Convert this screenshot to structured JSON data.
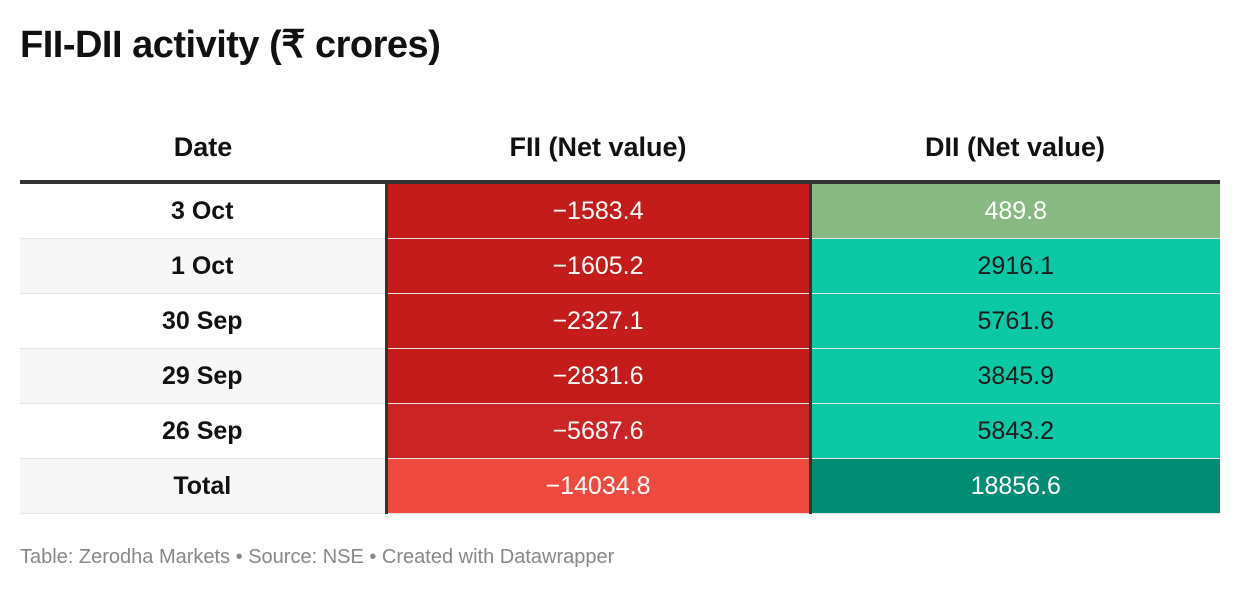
{
  "title": "FII-DII activity (₹ crores)",
  "footer": "Table: Zerodha Markets • Source: NSE • Created with Datawrapper",
  "chart_data": {
    "type": "table",
    "columns": [
      "Date",
      "FII (Net value)",
      "DII (Net value)"
    ],
    "rows": [
      {
        "date": "3 Oct",
        "fii": "−1583.4",
        "dii": "489.8",
        "fii_value": -1583.4,
        "dii_value": 489.8,
        "fii_color": "#c41b1b",
        "dii_color": "#89b982",
        "fii_text": "#ffffff",
        "dii_text": "#ffffff"
      },
      {
        "date": "1 Oct",
        "fii": "−1605.2",
        "dii": "2916.1",
        "fii_value": -1605.2,
        "dii_value": 2916.1,
        "fii_color": "#c41b1b",
        "dii_color": "#0ac9a4",
        "fii_text": "#ffffff",
        "dii_text": "#1a1a1a"
      },
      {
        "date": "30 Sep",
        "fii": "−2327.1",
        "dii": "5761.6",
        "fii_value": -2327.1,
        "dii_value": 5761.6,
        "fii_color": "#c41b1b",
        "dii_color": "#0ac9a4",
        "fii_text": "#ffffff",
        "dii_text": "#1a1a1a"
      },
      {
        "date": "29 Sep",
        "fii": "−2831.6",
        "dii": "3845.9",
        "fii_value": -2831.6,
        "dii_value": 3845.9,
        "fii_color": "#c41b1b",
        "dii_color": "#0ac9a4",
        "fii_text": "#ffffff",
        "dii_text": "#1a1a1a"
      },
      {
        "date": "26 Sep",
        "fii": "−5687.6",
        "dii": "5843.2",
        "fii_value": -5687.6,
        "dii_value": 5843.2,
        "fii_color": "#cb2424",
        "dii_color": "#0ac9a4",
        "fii_text": "#ffffff",
        "dii_text": "#1a1a1a"
      },
      {
        "date": "Total",
        "fii": "−14034.8",
        "dii": "18856.6",
        "fii_value": -14034.8,
        "dii_value": 18856.6,
        "fii_color": "#ee4b3e",
        "dii_color": "#018c74",
        "fii_text": "#ffffff",
        "dii_text": "#ffffff"
      }
    ]
  }
}
